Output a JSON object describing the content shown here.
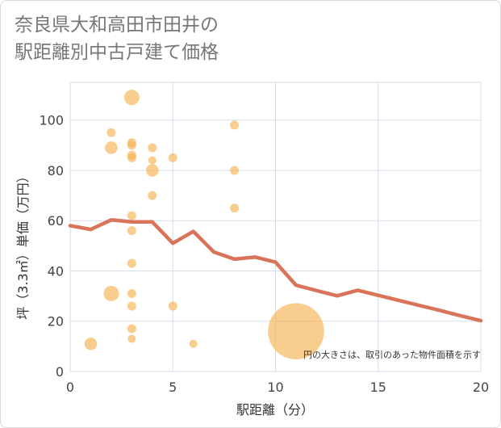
{
  "title_lines": [
    "奈良県大和高田市田井の",
    "駅距離別中古戸建て価格"
  ],
  "colors": {
    "bubble": "#f5b85c",
    "line": "#d9735a",
    "grid": "#d5dde8",
    "plot_bg": "#ffffff"
  },
  "chart_data": {
    "type": "scatter",
    "title": "奈良県大和高田市田井の駅距離別中古戸建て価格",
    "xlabel": "駅距離（分）",
    "ylabel": "坪（3.3㎡）単価（万円）",
    "xlim": [
      0,
      20
    ],
    "ylim": [
      0,
      115
    ],
    "xticks": [
      0,
      5,
      10,
      15,
      20
    ],
    "yticks": [
      0,
      20,
      40,
      60,
      80,
      100
    ],
    "grid": true,
    "note": "円の大きさは、取引のあった物件面積を示す",
    "points": [
      {
        "x": 1,
        "y": 11,
        "size": 2
      },
      {
        "x": 2,
        "y": 95,
        "size": 1
      },
      {
        "x": 2,
        "y": 89,
        "size": 2
      },
      {
        "x": 2,
        "y": 31,
        "size": 3
      },
      {
        "x": 3,
        "y": 109,
        "size": 3
      },
      {
        "x": 3,
        "y": 91,
        "size": 1
      },
      {
        "x": 3,
        "y": 90,
        "size": 1
      },
      {
        "x": 3,
        "y": 86,
        "size": 1
      },
      {
        "x": 3,
        "y": 85,
        "size": 1
      },
      {
        "x": 3,
        "y": 62,
        "size": 1
      },
      {
        "x": 3,
        "y": 56,
        "size": 1
      },
      {
        "x": 3,
        "y": 43,
        "size": 1
      },
      {
        "x": 3,
        "y": 31,
        "size": 1
      },
      {
        "x": 3,
        "y": 26,
        "size": 1
      },
      {
        "x": 3,
        "y": 17,
        "size": 1
      },
      {
        "x": 3,
        "y": 13,
        "size": 0.5
      },
      {
        "x": 4,
        "y": 89,
        "size": 1
      },
      {
        "x": 4,
        "y": 84,
        "size": 0.5
      },
      {
        "x": 4,
        "y": 80,
        "size": 2
      },
      {
        "x": 4,
        "y": 70,
        "size": 1
      },
      {
        "x": 5,
        "y": 85,
        "size": 1
      },
      {
        "x": 5,
        "y": 26,
        "size": 1
      },
      {
        "x": 6,
        "y": 11,
        "size": 0.5
      },
      {
        "x": 8,
        "y": 98,
        "size": 1
      },
      {
        "x": 8,
        "y": 80,
        "size": 1
      },
      {
        "x": 8,
        "y": 65,
        "size": 1
      },
      {
        "x": 11,
        "y": 16,
        "size": 40
      }
    ],
    "series": [
      {
        "type": "line",
        "x": [
          0,
          1,
          2,
          3,
          4,
          5,
          6,
          7,
          8,
          9,
          10,
          11,
          12,
          13,
          14,
          15,
          16,
          17,
          18,
          19,
          20
        ],
        "values": [
          58,
          56.5,
          60.3,
          59.5,
          59.5,
          51,
          55.7,
          47.5,
          44.7,
          45.5,
          43.5,
          34.3,
          32.2,
          30.1,
          32.3,
          30.3,
          28.3,
          26.3,
          24.3,
          22.2,
          20.2
        ]
      }
    ]
  }
}
